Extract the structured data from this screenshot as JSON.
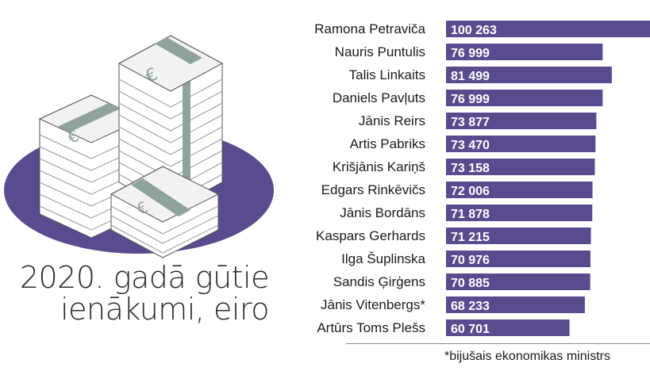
{
  "title": {
    "line1": "2020. gadā gūtie",
    "line2": "ienākumi, eiro"
  },
  "footnote": "*bijušais ekonomikas ministrs",
  "colors": {
    "bar": "#5a4a8e",
    "ellipse": "#5a4a8e",
    "band": "#8fa39d"
  },
  "icons": [
    "euro-banknote-stack-icon"
  ],
  "chart_data": {
    "type": "bar",
    "orientation": "horizontal",
    "categories": [
      "Ramona Petraviča",
      "Nauris Puntulis",
      "Talis Linkaits",
      "Daniels Pavļuts",
      "Jānis Reirs",
      "Artis Pabriks",
      "Krišjānis Kariņš",
      "Edgars Rinkēvičs",
      "Jānis Bordāns",
      "Kaspars Gerhards",
      "Ilga Šuplinska",
      "Sandis Ģirģens",
      "Jānis Vitenbergs*",
      "Artūrs Toms Plešs"
    ],
    "values": [
      100263,
      76999,
      81499,
      76999,
      73877,
      73470,
      73158,
      72006,
      71878,
      71215,
      70976,
      70885,
      68233,
      60701
    ],
    "labels": [
      "100 263",
      "76 999",
      "81 499",
      "76 999",
      "73 877",
      "73 470",
      "73 158",
      "72 006",
      "71 878",
      "71 215",
      "70 976",
      "70 885",
      "68 233",
      "60 701"
    ],
    "xlim": [
      0,
      100263
    ]
  }
}
